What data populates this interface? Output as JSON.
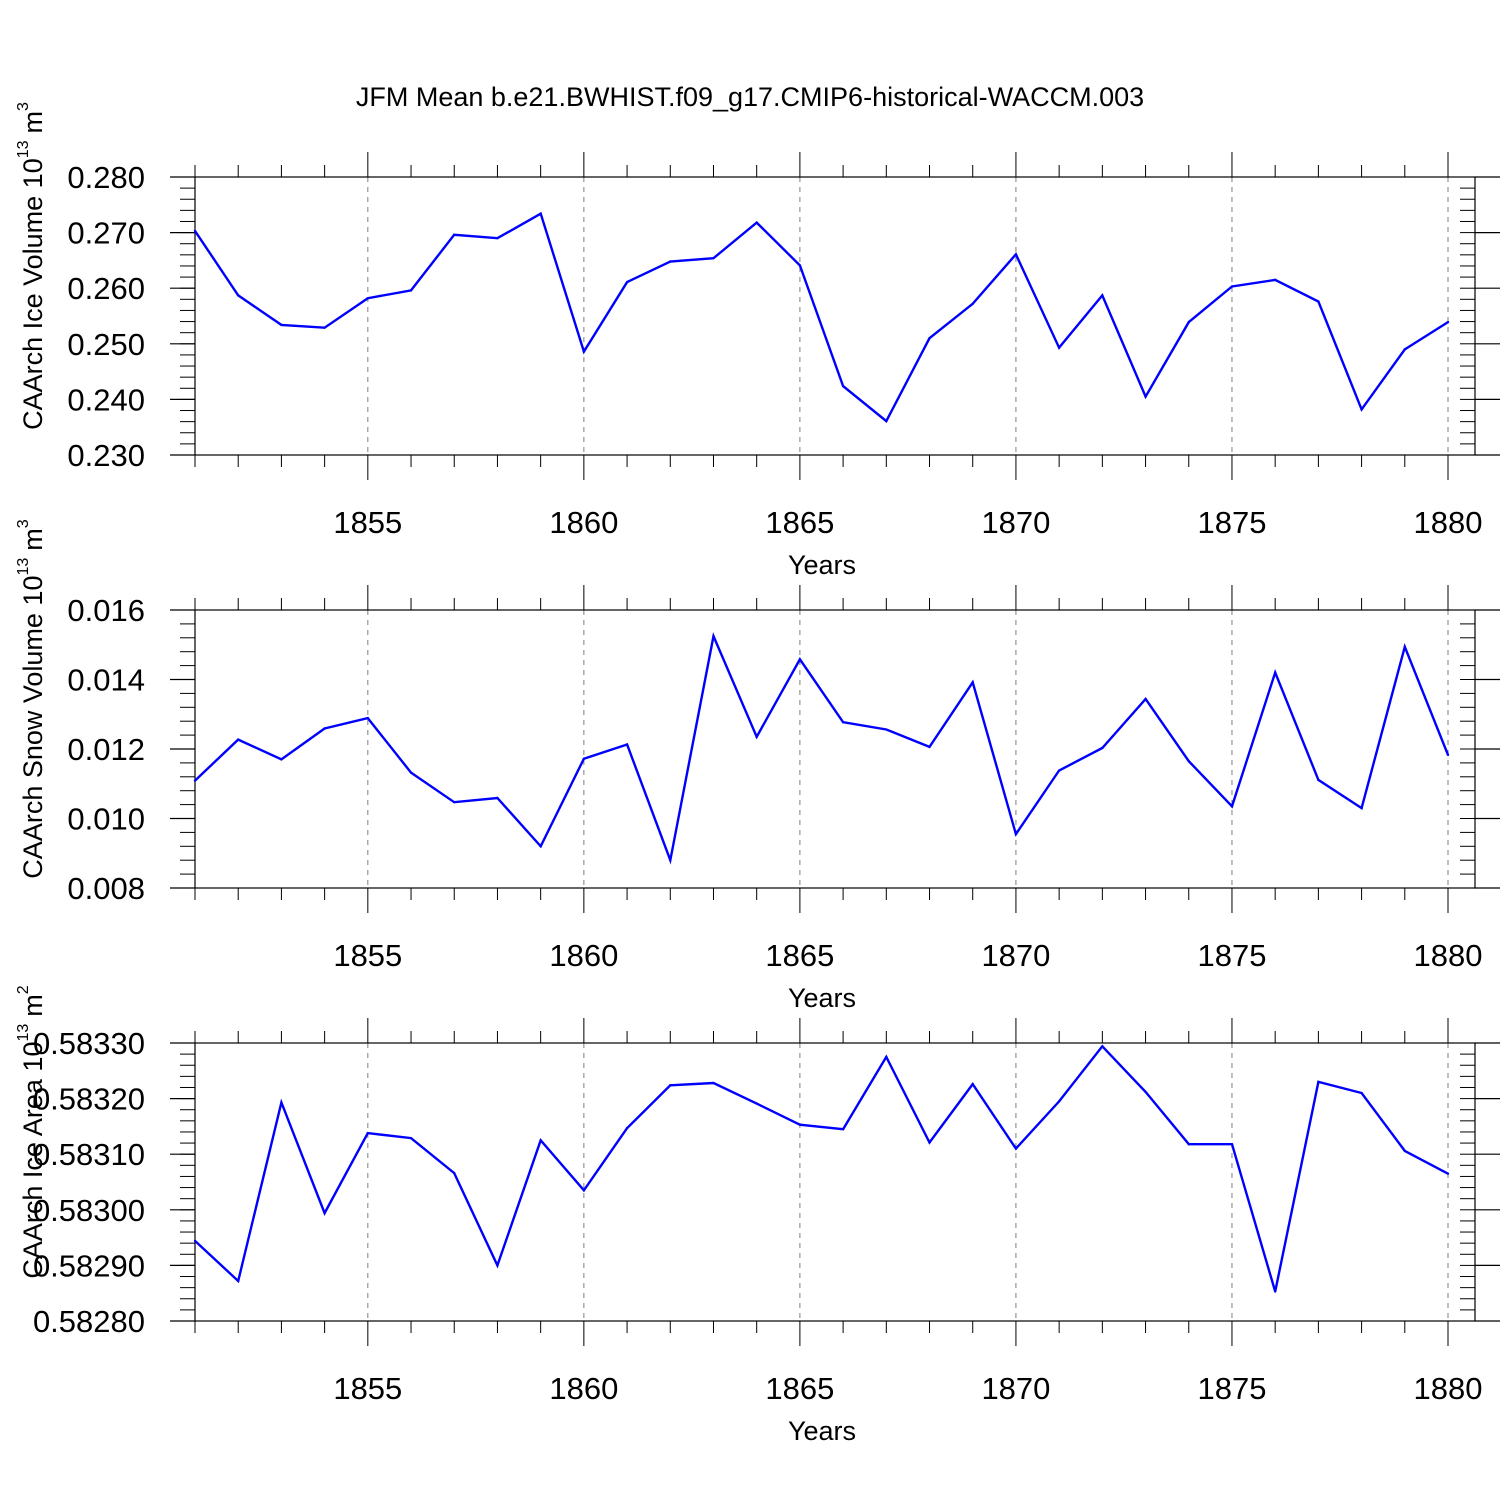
{
  "title": "JFM Mean b.e21.BWHIST.f09_g17.CMIP6-historical-WACCM.003",
  "colors": {
    "line": "#0000ff",
    "axis": "#000000",
    "grid": "#7f7f7f"
  },
  "chart_data": [
    {
      "type": "line",
      "name": "ice-volume",
      "ylabel": "CAArch Ice Volume 10",
      "ylabel_exp": "13",
      "ylabel_unit": "m",
      "ylabel_unit_exp": "3",
      "xlabel": "Years",
      "xlim": [
        1851,
        1880
      ],
      "ylim": [
        0.23,
        0.28
      ],
      "xticks": [
        1855,
        1860,
        1865,
        1870,
        1875,
        1880
      ],
      "xtick_labels": [
        "1855",
        "1860",
        "1865",
        "1870",
        "1875",
        "1880"
      ],
      "yticks": [
        0.23,
        0.24,
        0.25,
        0.26,
        0.27,
        0.28
      ],
      "ytick_labels": [
        "0.230",
        "0.240",
        "0.250",
        "0.260",
        "0.270",
        "0.280"
      ],
      "yminor_step": 0.002,
      "grid": "vertical dashed at major x ticks",
      "x": [
        1851,
        1852,
        1853,
        1854,
        1855,
        1856,
        1857,
        1858,
        1859,
        1860,
        1861,
        1862,
        1863,
        1864,
        1865,
        1866,
        1867,
        1868,
        1869,
        1870,
        1871,
        1872,
        1873,
        1874,
        1875,
        1876,
        1877,
        1878,
        1879,
        1880
      ],
      "y": [
        0.2703,
        0.2587,
        0.2534,
        0.2529,
        0.2582,
        0.2596,
        0.2696,
        0.269,
        0.2734,
        0.2486,
        0.2611,
        0.2648,
        0.2654,
        0.2718,
        0.2641,
        0.2424,
        0.2361,
        0.251,
        0.2572,
        0.2661,
        0.2493,
        0.2587,
        0.2405,
        0.2539,
        0.2603,
        0.2615,
        0.2576,
        0.2382,
        0.249,
        0.2539
      ]
    },
    {
      "type": "line",
      "name": "snow-volume",
      "ylabel": "CAArch Snow Volume 10",
      "ylabel_exp": "13",
      "ylabel_unit": "m",
      "ylabel_unit_exp": "3",
      "xlabel": "Years",
      "xlim": [
        1851,
        1880
      ],
      "ylim": [
        0.008,
        0.016
      ],
      "xticks": [
        1855,
        1860,
        1865,
        1870,
        1875,
        1880
      ],
      "xtick_labels": [
        "1855",
        "1860",
        "1865",
        "1870",
        "1875",
        "1880"
      ],
      "yticks": [
        0.008,
        0.01,
        0.012,
        0.014,
        0.016
      ],
      "ytick_labels": [
        "0.008",
        "0.010",
        "0.012",
        "0.014",
        "0.016"
      ],
      "yminor_step": 0.0004,
      "grid": "vertical dashed at major x ticks",
      "x": [
        1851,
        1852,
        1853,
        1854,
        1855,
        1856,
        1857,
        1858,
        1859,
        1860,
        1861,
        1862,
        1863,
        1864,
        1865,
        1866,
        1867,
        1868,
        1869,
        1870,
        1871,
        1872,
        1873,
        1874,
        1875,
        1876,
        1877,
        1878,
        1879,
        1880
      ],
      "y": [
        0.01109,
        0.01227,
        0.0117,
        0.01259,
        0.01289,
        0.01132,
        0.01047,
        0.01059,
        0.0092,
        0.01172,
        0.01213,
        0.0088,
        0.01525,
        0.01235,
        0.01458,
        0.01277,
        0.01256,
        0.01206,
        0.01392,
        0.00955,
        0.01138,
        0.01203,
        0.01344,
        0.01165,
        0.01035,
        0.0142,
        0.01111,
        0.0103,
        0.01494,
        0.01183
      ]
    },
    {
      "type": "line",
      "name": "ice-area",
      "ylabel": "CAArch Ice Area 10",
      "ylabel_exp": "13",
      "ylabel_unit": "m",
      "ylabel_unit_exp": "2",
      "xlabel": "Years",
      "xlim": [
        1851,
        1880
      ],
      "ylim": [
        0.5828,
        0.5833
      ],
      "xticks": [
        1855,
        1860,
        1865,
        1870,
        1875,
        1880
      ],
      "xtick_labels": [
        "1855",
        "1860",
        "1865",
        "1870",
        "1875",
        "1880"
      ],
      "yticks": [
        0.5828,
        0.5829,
        0.583,
        0.5831,
        0.5832,
        0.5833
      ],
      "ytick_labels": [
        "0.58280",
        "0.58290",
        "0.58300",
        "0.58310",
        "0.58320",
        "0.58330"
      ],
      "yminor_step": 2e-05,
      "grid": "vertical dashed at major x ticks",
      "x": [
        1851,
        1852,
        1853,
        1854,
        1855,
        1856,
        1857,
        1858,
        1859,
        1860,
        1861,
        1862,
        1863,
        1864,
        1865,
        1866,
        1867,
        1868,
        1869,
        1870,
        1871,
        1872,
        1873,
        1874,
        1875,
        1876,
        1877,
        1878,
        1879,
        1880
      ],
      "y": [
        0.582944,
        0.582872,
        0.583193,
        0.582994,
        0.583138,
        0.583129,
        0.583066,
        0.5829,
        0.583125,
        0.583035,
        0.583147,
        0.583224,
        0.583228,
        0.583191,
        0.583153,
        0.583145,
        0.583275,
        0.583121,
        0.583226,
        0.58311,
        0.583195,
        0.583294,
        0.583212,
        0.583118,
        0.583118,
        0.582853,
        0.58323,
        0.58321,
        0.583106,
        0.583065
      ]
    }
  ]
}
